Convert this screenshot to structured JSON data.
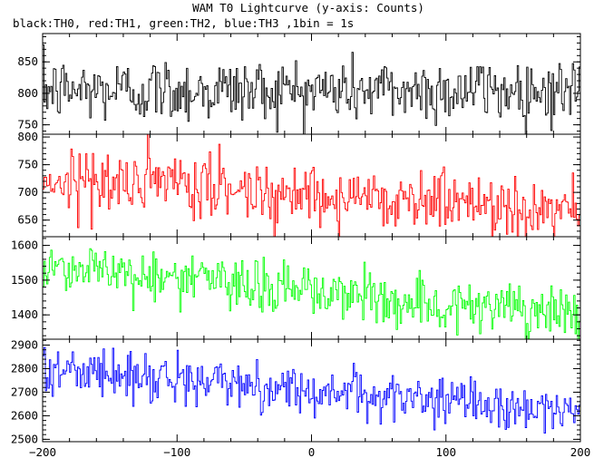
{
  "chart_data": {
    "type": "line",
    "title": "WAM T0 Lightcurve (y-axis: Counts)",
    "subtitle": "black:TH0, red:TH1, green:TH2, blue:TH3 ,1bin = 1s",
    "xlim": [
      -200,
      200
    ],
    "xticks": [
      -200,
      -100,
      0,
      100,
      200
    ],
    "x_sampling": "1 bin = 1 s, from -200 to 200",
    "grid": false,
    "legend": "none (colors described in subtitle)",
    "panels": [
      {
        "series_name": "TH0",
        "color": "#000000",
        "ylim": [
          735,
          895
        ],
        "yticks": [
          750,
          800,
          850
        ],
        "trend": {
          "start": 805,
          "end": 805
        },
        "noise_sigma": 26
      },
      {
        "series_name": "TH1",
        "color": "#ff0000",
        "ylim": [
          620,
          805
        ],
        "yticks": [
          650,
          700,
          750,
          800
        ],
        "trend": {
          "start": 725,
          "end": 670
        },
        "noise_sigma": 28
      },
      {
        "series_name": "TH2",
        "color": "#00ff00",
        "ylim": [
          1330,
          1625
        ],
        "yticks": [
          1400,
          1500,
          1600
        ],
        "trend": {
          "start": 1545,
          "end": 1390
        },
        "noise_sigma": 38
      },
      {
        "series_name": "TH3",
        "color": "#0000ff",
        "ylim": [
          2490,
          2925
        ],
        "yticks": [
          2500,
          2600,
          2700,
          2800,
          2900
        ],
        "trend": {
          "start": 2800,
          "end": 2615
        },
        "noise_sigma": 48
      }
    ]
  }
}
